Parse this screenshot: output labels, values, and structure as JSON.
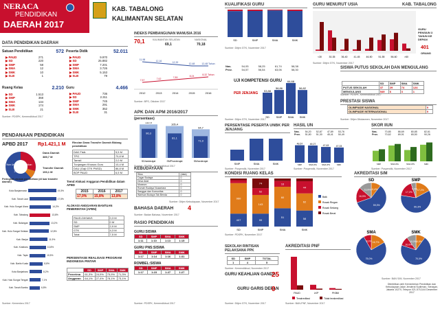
{
  "header": {
    "title1": "NERACA",
    "title2": "PENDIDIKAN",
    "title3": "DAERAH 2017",
    "region1": "KAB. TABALONG",
    "region2": "KALIMANTAN SELATAN",
    "corner": "KAB. TABALONG"
  },
  "data_pendidikan": {
    "title": "DATA PENDIDIKAN DAERAH",
    "satuan": {
      "label": "Satuan Pendidikan",
      "total": "572",
      "rows": [
        [
          "PAUD",
          "271"
        ],
        [
          "SD",
          "220"
        ],
        [
          "SMP",
          "58"
        ],
        [
          "SMA",
          "12"
        ],
        [
          "SMK",
          "10"
        ],
        [
          "SLB",
          "1"
        ]
      ]
    },
    "siswa": {
      "label": "Peserta Didik",
      "total": "52.011",
      "rows": [
        [
          "PAUD",
          "9.970"
        ],
        [
          "SD",
          "25.882"
        ],
        [
          "SMP",
          "7.201"
        ],
        [
          "SMA",
          "3.726"
        ],
        [
          "SMK",
          "5.153"
        ],
        [
          "SLB",
          "79"
        ]
      ]
    },
    "kelas": {
      "label": "Ruang Kelas",
      "total": "2.210",
      "rows": [
        [
          "SD",
          "1.513"
        ],
        [
          "SMP",
          "368"
        ],
        [
          "SMA",
          "134"
        ],
        [
          "SMK",
          "174"
        ],
        [
          "SLB",
          "21"
        ]
      ]
    },
    "guru": {
      "label": "Guru",
      "total": "4.466",
      "rows": [
        [
          "PAUD",
          "736"
        ],
        [
          "SD",
          "2.311"
        ],
        [
          "SMP",
          "745"
        ],
        [
          "SMA",
          "291"
        ],
        [
          "SMK",
          "352"
        ],
        [
          "SLB",
          "31"
        ]
      ]
    },
    "source1": "Sumber: PDSPK, Kemendikbud 2017",
    "source2": "Sumber: PDSPK, Kemendikbud 2017"
  },
  "ipm": {
    "title": "INDEKS PEMBANGUNAN MANUSIA 2016",
    "big": "70,1",
    "kalsel_label": "KALIMANTAN SELATAN",
    "kalsel": "69,1",
    "nasional_label": "NASIONAL",
    "nasional": "70,18",
    "years": [
      "2012",
      "2013",
      "2014",
      "2015",
      "2016"
    ],
    "top": [
      "11,98",
      "12,16",
      "12,32",
      "12,48",
      "12,48 Tahun"
    ],
    "bottom": [
      "7,57",
      "7,62",
      "7,89",
      "8,24",
      "8,32 Tahun"
    ],
    "legend1": "Harapan Lama Sekolah",
    "legend2": "Rata-rata Lama Sekolah",
    "source": "Sumber: BPS, Oktober 2017"
  },
  "apk": {
    "title": "APK DAN APM 2016/2017",
    "sub": "(persentase)",
    "cats": [
      "SD/sederajat",
      "SMP/sederajat",
      "SM/sederajat"
    ],
    "apk": [
      110.9,
      105.4,
      94.7
    ],
    "apm": [
      96.3,
      81.1,
      71.9
    ],
    "apk_lbl": [
      "110,9",
      "105,4",
      "94,7"
    ],
    "apm_lbl": [
      "96,3",
      "81,1",
      "71,9"
    ],
    "legend": [
      "APK",
      "APM"
    ],
    "source": "Sumber: PDSPK, Kemendikbud 2017"
  },
  "pendanaan": {
    "title": "PENDANAAN PENDIDIKAN",
    "apbd_label": "APBD 2017",
    "apbd": "Rp1.421,1 M",
    "dana_daerah_label": "Dana Daerah",
    "dana_daerah": "389,7 M",
    "non_urusan_label": "Non Urusan Pendidikan",
    "non_urusan": "1.054,3 M",
    "transfer_label": "Transfer Daerah",
    "transfer": "193,1 M",
    "rincian_title": "Rincian Dana Transfer Daerah Bidang pendidikan",
    "rincian": [
      [
        "DAK Fisik",
        "5,5 M"
      ],
      [
        "TPG",
        "70,8 M"
      ],
      [
        "Tamsil",
        "2,0 M"
      ],
      [
        "Tunjangan Khusus Guru",
        "10,4 M"
      ],
      [
        "DAU (Gaji GTK PNSD)",
        "86,8 M"
      ],
      [
        "BOP PAUD",
        "6,5 M"
      ]
    ],
    "trend_title": "Trend Alokasi Anggaran Pendidikan dalam APBD",
    "trend_years": [
      "2015",
      "2016",
      "2017"
    ],
    "trend_vals": [
      "17,0%",
      "15,8%",
      "13,8%"
    ],
    "bantuan_title": "ALOKASI ANGGARAN BANTUAN PEMERINTAH (APBN)",
    "bantuan": [
      [
        "PAUD-DIKMAS",
        "0,3 M"
      ],
      [
        "SD",
        "0 M"
      ],
      [
        "SMP",
        "2,9 M"
      ],
      [
        "GTK",
        "4,3 M"
      ],
      [
        "Total",
        "7,5 M"
      ]
    ],
    "realisasi_title": "PERSENTASE REALISASI PROGRAM INDONESIA PINTAR",
    "realisasi_cols": [
      "SD",
      "SMP",
      "SMA",
      "SMK"
    ],
    "realisasi": [
      [
        "Penerima",
        "61,3%",
        "24,9%",
        "75,9%",
        "71,3%"
      ],
      [
        "Anggaran",
        "64,1%",
        "27,4%",
        "78,1%",
        "73,1%"
      ]
    ],
    "peringkat_title": "Peringkat urusan pendidikan (di luar transfer daerah)",
    "peringkat": [
      [
        "Kota Banjarmasin",
        "19,3%"
      ],
      [
        "Kab. Tanah Laut",
        "17,5%"
      ],
      [
        "Kab. Hulu Sungai Utara",
        "14,2%"
      ],
      [
        "Kab. Tabalong",
        "13,8%"
      ],
      [
        "Kab. Balangan",
        "13,2%"
      ],
      [
        "Kab. Hulu Sungai Selatan",
        "12,8%"
      ],
      [
        "Kab. Banjar",
        "11,9%"
      ],
      [
        "Kab. Kotabaru",
        "10,8%"
      ],
      [
        "Kab. Tapin",
        "10,5%"
      ],
      [
        "Kab. Barito Kuala",
        "8,8%"
      ],
      [
        "Kota Banjarbaru",
        "8,2%"
      ],
      [
        "Kab. Hulu Sungai Tengah",
        "7,1%"
      ],
      [
        "Kab. Tanah Bumbu",
        "6,8%"
      ]
    ],
    "source": "Sumber: Kemenkeu 2017"
  },
  "kebudayaan": {
    "title": "KEBUDAYAAN",
    "rows": [
      [
        "Situs",
        "(data)"
      ],
      [
        "Cagar Budaya",
        "0"
      ],
      [
        "Desa Adat",
        "0"
      ],
      [
        "Museum",
        "0"
      ],
      [
        "Rumah Budaya Nusantara",
        "0"
      ],
      [
        "Sanggar dan Komunitas",
        "0"
      ],
      [
        "Warisan Budaya Tak Benda",
        "0"
      ]
    ],
    "source": "Sumber: Ditjen Kebudayaan, November 2017"
  },
  "bahasa": {
    "title": "BAHASA DAERAH",
    "value": "4",
    "source": "Sumber: Badan Bahasa, November 2017"
  },
  "rasio": {
    "title": "RASIO PENDIDIKAN",
    "guru_siswa_label": "GURU:SISWA",
    "cols": [
      "SD",
      "SMP",
      "SMA",
      "SMK"
    ],
    "guru_siswa": [
      "1:11",
      "1:10",
      "1:13",
      "1:15"
    ],
    "pns_label": "GURU PNS:SISWA",
    "pns": [
      "1:17",
      "1:14",
      "1:16",
      "1:31"
    ],
    "rombel_label": "ROMBEL:SISWA",
    "rombel": [
      "1:17",
      "1:23",
      "1:27",
      "1:27"
    ],
    "source": "Sumber: PDSPK, Kemendikbud 2017"
  },
  "kualifikasi": {
    "title": "KUALIFIKASI GURU",
    "cats": [
      "SD",
      "SMP",
      "SMA",
      "SMK"
    ],
    "s1": [
      94.5,
      95.0,
      97.0,
      95.0
    ],
    "source": "Sumber: Ditjen GTK, November 2017"
  },
  "usia": {
    "title": "GURU MENURUT USIA",
    "cats": [
      "<30",
      "30-35",
      "36-40",
      "41-45",
      "46-50",
      "51-55",
      "56-60",
      ">60"
    ],
    "pns": [
      5,
      85,
      5,
      6,
      8,
      45,
      48,
      30
    ],
    "bukan": [
      120,
      55,
      50,
      45,
      55,
      68,
      75,
      10
    ],
    "labels": [
      "87",
      "155",
      "111",
      "72",
      "37"
    ],
    "pensiun_label": "GURU PENSIUN 3 TAHUN KE DEPAN",
    "pensiun": "401",
    "pensiun_unit": "ORANG",
    "legend": [
      "PNS",
      "Bukan PNS"
    ],
    "source": "Sumber: Ditjen GTK, November 2017"
  },
  "nilai": {
    "rows": [
      [
        "Nas.",
        "54,93",
        "58,25",
        "61,74",
        "58,38"
      ],
      [
        "Prov.",
        "54,57",
        "56,54",
        "63,06",
        "58,30"
      ]
    ],
    "uji_title": "UJI KOMPETENSI GURU",
    "uji_sub": "PER JENJANG",
    "cats": [
      "SD",
      "SMP",
      "SMA",
      "SMK"
    ],
    "vals": [
      53.88,
      56.86,
      64.68,
      56.82
    ],
    "val_lbl": [
      "53,88",
      "56,86",
      "64,68",
      "56,82"
    ],
    "source": "Sumber: Ditjen GTK, November 2017"
  },
  "putus": {
    "title": "SISWA PUTUS SEKOLAH DAN MENGULANG",
    "cols": [
      "SD",
      "SMP",
      "SMA",
      "SMK"
    ],
    "rows": [
      [
        "PUTUS SEKOLAH",
        "37",
        "29",
        "74",
        "124"
      ],
      [
        "MENGULANG",
        "549",
        "6",
        "3",
        "1"
      ]
    ],
    "source": "Sumber: PDSPK, Kemendikbud 2017"
  },
  "prestasi": {
    "title": "PRESTASI SISWA",
    "rows": [
      [
        "OLIMPIADE NASIONAL",
        "0"
      ],
      [
        "OLIMPIADE INTERNASIONAL",
        "0"
      ]
    ],
    "source": "Sumber: Ditjen Dikdasmen, November 2017"
  },
  "unbk": {
    "title": "PERSENTASE PESERTA UNBK PER JENJANG",
    "cats": [
      "SMP",
      "SMA",
      "SMK"
    ],
    "vals": [
      50,
      100,
      100
    ],
    "source": "Sumber: Puspendik, November 2017"
  },
  "hasil_un": {
    "title": "HASIL UN",
    "head": [
      "Nas.",
      "54,20",
      "52,87",
      "47,89",
      "53,76"
    ],
    "prov": [
      "Prov.",
      "51,80",
      "51,30",
      "45,41",
      "50,49"
    ],
    "cats": [
      "SMP",
      "SMA IPA",
      "SMA IPS",
      "SMK"
    ],
    "vals": [
      49.57,
      49.27,
      47.63,
      47.03
    ],
    "val_lbl": [
      "49,57",
      "49,27",
      "47,63",
      "47,03"
    ],
    "source": "Sumber: Puspendik, November 2017",
    "legend": [
      "2016",
      "2017"
    ]
  },
  "skor_iiun": {
    "title": "SKOR IIUN",
    "nas": [
      "Nas.",
      "70,85",
      "86,69",
      "80,85",
      "82,61"
    ],
    "prov": [
      "Prov.",
      "70,62",
      "89,91",
      "65,50",
      "90,26"
    ],
    "cats": [
      "SMP",
      "SMA IPA",
      "SMA IPS",
      "SMK"
    ],
    "v2016": [
      68,
      82,
      70,
      84
    ],
    "v2017": [
      72,
      86,
      78,
      90
    ],
    "legend": [
      "2016",
      "2017"
    ],
    "source": "Sumber: Puspendik, November 2017"
  },
  "kondisi": {
    "title": "KONDISI RUANG KELAS",
    "cats": [
      "SD",
      "SMP",
      "SMA",
      "SMK"
    ],
    "baik": [
      407,
      99,
      51,
      58
    ],
    "ringan": [
      960,
      143,
      60,
      62
    ],
    "sedang": [
      92,
      52,
      16,
      44
    ],
    "berat": [
      54,
      74,
      7,
      10
    ],
    "legend": [
      "Baik",
      "Rusak Ringan",
      "Rusak Sedang",
      "Rusak Berat"
    ],
    "source": "Sumber: PDSPK, November 2017"
  },
  "sekolah_rintisan": {
    "title": "SEKOLAH RINTISAN PELAKSANA PPK",
    "cols": [
      "SD",
      "SMP",
      "TOTAL"
    ],
    "vals": [
      "1",
      "4",
      "5"
    ],
    "source": "Sumber: Kemendikbud, November 2017"
  },
  "keahlian": {
    "title": "GURU KEAHLIAN GANDA",
    "value": "25"
  },
  "garis_depan": {
    "title": "GURU GARIS DEPAN",
    "value": "0",
    "source": "Sumber: Ditjen GTK, November 2017"
  },
  "akreditasi_pnf": {
    "title": "AKREDITASI PNF",
    "cats": [
      "PAUD",
      "LKP",
      "PKBM"
    ],
    "ter": [
      120,
      18,
      6
    ],
    "tidak": [
      16,
      4,
      3
    ],
    "legend": [
      "Terakreditasi",
      "Tidak terakreditasi"
    ],
    "source": "Sumber: BAN-PNF, November 2017"
  },
  "akreditasi_sm": {
    "title": "AKREDITASI S/M",
    "pies": [
      {
        "name": "SD",
        "a": "A",
        "b": "B",
        "c": "C",
        "tt": "TT",
        "vals": [
          10.4,
          59.3,
          16.5,
          13.8
        ],
        "lbl": [
          "10,4%",
          "59,3%",
          "16,5%",
          "13,8%"
        ]
      },
      {
        "name": "SMP",
        "vals": [
          17.2,
          60.3,
          17.2,
          5.3
        ],
        "lbl": [
          "17,2%",
          "60,3%",
          "17,2%",
          "5,3%"
        ]
      },
      {
        "name": "SMA",
        "vals": [
          16.7,
          75.0,
          8.3,
          0
        ],
        "lbl": [
          "16,7%",
          "75,0%",
          "8,3%",
          ""
        ]
      },
      {
        "name": "SMK",
        "vals": [
          10.0,
          70.0,
          10.0,
          10.0
        ],
        "lbl": [
          "10,0%",
          "70,0%",
          "10,0%",
          "10,0%"
        ]
      }
    ],
    "source": "Sumber: BAN S/M, November 2017"
  },
  "footer": "Diterbitkan oleh Kementerian Pendidikan dan Kebudayaan Jalan Jenderal Sudirman, Senayan, Jakarta 10270, Telepon 021-5711144 Desember 2017",
  "colors": {
    "red": "#c8102e",
    "blue": "#2e4d9b",
    "darkred": "#7a0b0b",
    "green": "#2e6b1f",
    "lightgreen": "#7fbf3f",
    "orange": "#e07b1a"
  }
}
